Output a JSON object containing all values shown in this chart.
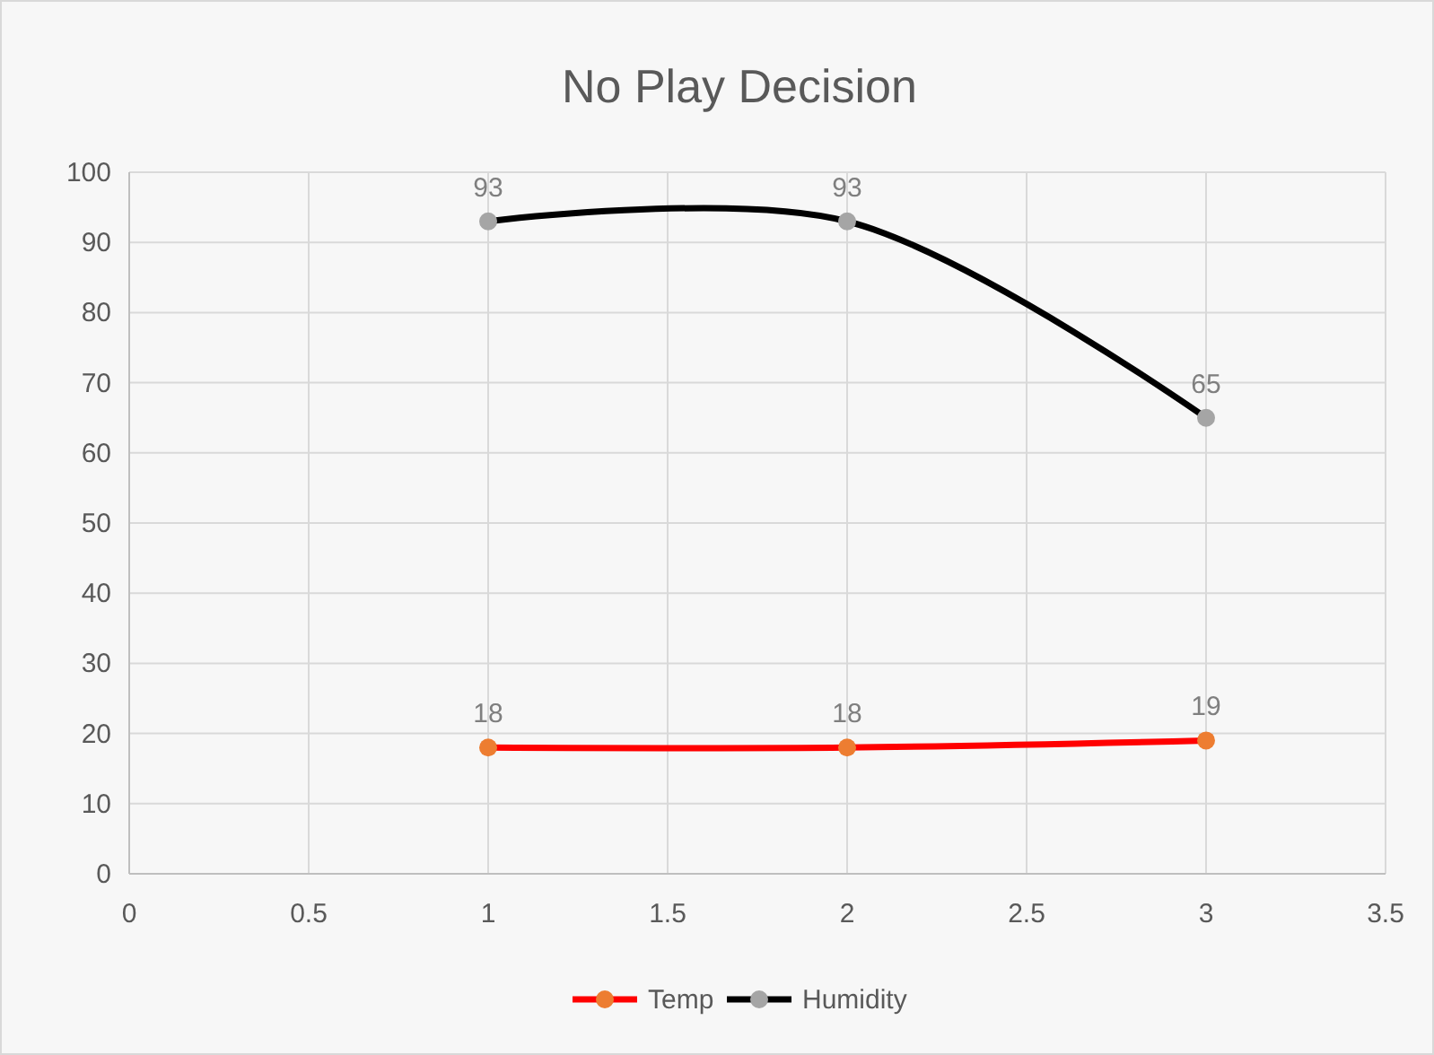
{
  "chart_data": {
    "type": "line",
    "title": "No Play Decision",
    "x": [
      1,
      2,
      3
    ],
    "series": [
      {
        "name": "Temp",
        "color": "#ff0000",
        "colors": [
          "#ed7d31",
          "#ed7d31",
          "#ed7d31"
        ],
        "values": [
          18,
          18,
          19
        ]
      },
      {
        "name": "Humidity",
        "color": "#000000",
        "colors": [
          "#a5a5a5",
          "#a5a5a5",
          "#a5a5a5"
        ],
        "values": [
          93,
          93,
          65
        ]
      }
    ],
    "xlim": [
      0,
      3.5
    ],
    "xticks": [
      0,
      0.5,
      1,
      1.5,
      2,
      2.5,
      3,
      3.5
    ],
    "ylim": [
      0,
      100
    ],
    "yticks": [
      0,
      10,
      20,
      30,
      40,
      50,
      60,
      70,
      80,
      90,
      100
    ],
    "grid": true,
    "legend": "bottom",
    "marker": "circle",
    "line_style": "solid",
    "data_labels": true
  }
}
